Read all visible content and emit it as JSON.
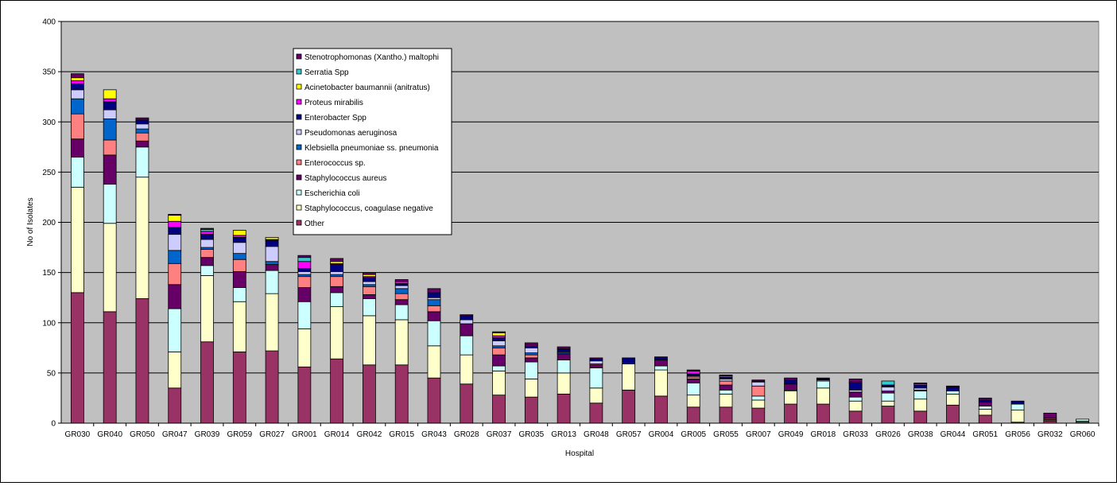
{
  "chart_data": {
    "type": "bar",
    "stacked": true,
    "title": "",
    "xlabel": "Hospital",
    "ylabel": "No of Isolates",
    "ylim": [
      0,
      400
    ],
    "yticks": [
      0,
      50,
      100,
      150,
      200,
      250,
      300,
      350,
      400
    ],
    "grid": true,
    "legend_position": "top-center",
    "plot_background": "#C0C0C0",
    "categories": [
      "GR030",
      "GR040",
      "GR050",
      "GR047",
      "GR039",
      "GR059",
      "GR027",
      "GR001",
      "GR014",
      "GR042",
      "GR015",
      "GR043",
      "GR028",
      "GR037",
      "GR035",
      "GR013",
      "GR048",
      "GR057",
      "GR004",
      "GR005",
      "GR055",
      "GR007",
      "GR049",
      "GR018",
      "GR033",
      "GR026",
      "GR038",
      "GR044",
      "GR051",
      "GR056",
      "GR032",
      "GR060"
    ],
    "series": [
      {
        "name": "Other",
        "color": "#993366",
        "values": [
          130,
          111,
          124,
          35,
          81,
          71,
          72,
          56,
          64,
          58,
          58,
          45,
          39,
          28,
          26,
          29,
          20,
          33,
          27,
          16,
          16,
          15,
          19,
          19,
          12,
          17,
          12,
          18,
          8,
          1,
          2,
          1
        ]
      },
      {
        "name": "Staphylococcus, coagulase negative",
        "color": "#FFFFCC",
        "values": [
          105,
          88,
          121,
          36,
          66,
          50,
          57,
          38,
          52,
          49,
          45,
          32,
          29,
          24,
          18,
          21,
          15,
          26,
          26,
          12,
          13,
          8,
          13,
          16,
          10,
          5,
          12,
          11,
          6,
          12,
          1,
          1
        ]
      },
      {
        "name": "Escherichia coli",
        "color": "#CCFFFF",
        "values": [
          30,
          39,
          30,
          43,
          10,
          14,
          23,
          27,
          14,
          17,
          15,
          25,
          19,
          5,
          17,
          13,
          20,
          0,
          4,
          12,
          4,
          4,
          1,
          7,
          4,
          8,
          8,
          3,
          3,
          6,
          0,
          2
        ]
      },
      {
        "name": "Staphylococcus aureus",
        "color": "#660066",
        "values": [
          18,
          29,
          6,
          24,
          8,
          16,
          6,
          14,
          6,
          4,
          5,
          9,
          12,
          11,
          4,
          6,
          3,
          0,
          6,
          4,
          5,
          0,
          6,
          0,
          5,
          2,
          1,
          0,
          4,
          0,
          1,
          0
        ]
      },
      {
        "name": "Enterococcus sp.",
        "color": "#FF8080",
        "values": [
          25,
          15,
          8,
          21,
          8,
          12,
          0,
          11,
          10,
          8,
          6,
          6,
          0,
          7,
          3,
          0,
          1,
          0,
          0,
          2,
          4,
          10,
          0,
          0,
          0,
          0,
          0,
          0,
          0,
          0,
          1,
          0
        ]
      },
      {
        "name": "Klebsiella pneumoniae ss. pneumonia",
        "color": "#0066CC",
        "values": [
          15,
          21,
          4,
          13,
          2,
          6,
          3,
          2,
          2,
          2,
          5,
          6,
          0,
          2,
          2,
          1,
          0,
          0,
          0,
          0,
          0,
          0,
          0,
          0,
          0,
          0,
          0,
          0,
          0,
          0,
          0,
          0
        ]
      },
      {
        "name": "Pseudomonas aeruginosa",
        "color": "#CCCCFF",
        "values": [
          9,
          9,
          5,
          16,
          8,
          11,
          15,
          3,
          3,
          3,
          3,
          2,
          4,
          5,
          5,
          1,
          3,
          0,
          0,
          1,
          2,
          4,
          0,
          1,
          2,
          4,
          2,
          0,
          0,
          0,
          0,
          0
        ]
      },
      {
        "name": "Enterobacter Spp",
        "color": "#000080",
        "values": [
          6,
          8,
          4,
          7,
          5,
          5,
          6,
          3,
          7,
          4,
          2,
          5,
          4,
          3,
          2,
          3,
          2,
          6,
          3,
          2,
          2,
          1,
          4,
          1,
          7,
          2,
          3,
          4,
          2,
          3,
          0,
          0
        ]
      },
      {
        "name": "Proteus mirabilis",
        "color": "#FF00FF",
        "values": [
          3,
          3,
          0,
          6,
          3,
          2,
          1,
          7,
          1,
          1,
          2,
          0,
          0,
          2,
          1,
          0,
          0,
          0,
          0,
          3,
          0,
          0,
          0,
          0,
          1,
          0,
          0,
          0,
          0,
          0,
          0,
          0
        ]
      },
      {
        "name": "Acinetobacter baumannii (anitratus)",
        "color": "#FFFF00",
        "values": [
          3,
          9,
          0,
          6,
          0,
          5,
          2,
          0,
          2,
          2,
          0,
          0,
          0,
          3,
          0,
          0,
          0,
          0,
          0,
          0,
          1,
          0,
          0,
          0,
          0,
          0,
          1,
          0,
          0,
          0,
          0,
          0
        ]
      },
      {
        "name": "Serratia Spp",
        "color": "#33CCCC",
        "values": [
          0,
          0,
          0,
          0,
          2,
          0,
          0,
          4,
          0,
          0,
          0,
          0,
          0,
          0,
          0,
          0,
          0,
          0,
          0,
          0,
          0,
          0,
          0,
          0,
          0,
          4,
          0,
          0,
          0,
          0,
          0,
          0
        ]
      },
      {
        "name": "Stenotrophomonas (Xantho.) maltophi",
        "color": "#660066",
        "values": [
          4,
          0,
          2,
          1,
          1,
          0,
          0,
          2,
          3,
          2,
          2,
          4,
          1,
          1,
          2,
          2,
          1,
          0,
          0,
          1,
          1,
          1,
          2,
          1,
          3,
          0,
          1,
          1,
          2,
          0,
          5,
          0
        ]
      }
    ]
  }
}
